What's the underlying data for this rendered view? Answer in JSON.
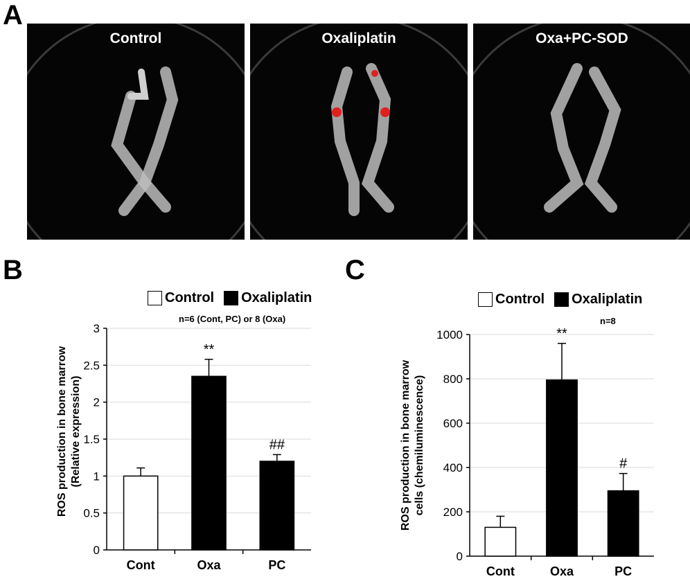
{
  "panel_a": {
    "letter": "A",
    "images": [
      {
        "title": "Control"
      },
      {
        "title": "Oxaliplatin"
      },
      {
        "title": "Oxa+PC-SOD"
      }
    ]
  },
  "panel_b": {
    "letter": "B",
    "legend": {
      "control": "Control",
      "oxaliplatin": "Oxaliplatin"
    },
    "n_note": "n=6 (Cont, PC) or 8 (Oxa)",
    "ylabel_line1": "ROS production in bone marrow",
    "ylabel_line2": "(Relative expression)"
  },
  "panel_c": {
    "letter": "C",
    "legend": {
      "control": "Control",
      "oxaliplatin": "Oxaliplatin"
    },
    "n_note": "n=8",
    "ylabel_line1": "ROS production in bone marrow",
    "ylabel_line2": "cells (chemiluminescence)"
  },
  "chart_data": [
    {
      "type": "bar",
      "categories": [
        "Cont",
        "Oxa",
        "PC"
      ],
      "values": [
        1.0,
        2.35,
        1.2
      ],
      "errors": [
        0.11,
        0.23,
        0.09
      ],
      "annotations": [
        "",
        "**",
        "##"
      ],
      "fills": [
        "#ffffff",
        "#000000",
        "#000000"
      ],
      "ylim": [
        0,
        3
      ],
      "yticks": [
        "0",
        "0.5",
        "1",
        "1.5",
        "2",
        "2.5",
        "3"
      ],
      "ytick_values": [
        0,
        0.5,
        1,
        1.5,
        2,
        2.5,
        3
      ],
      "grid": true
    },
    {
      "type": "bar",
      "categories": [
        "Cont",
        "Oxa",
        "PC"
      ],
      "values": [
        130,
        795,
        295
      ],
      "errors": [
        50,
        165,
        78
      ],
      "annotations": [
        "",
        "**",
        "#"
      ],
      "fills": [
        "#ffffff",
        "#000000",
        "#000000"
      ],
      "ylim": [
        0,
        1000
      ],
      "yticks": [
        "0",
        "200",
        "400",
        "600",
        "800",
        "1000"
      ],
      "ytick_values": [
        0,
        200,
        400,
        600,
        800,
        1000
      ],
      "grid": true
    }
  ]
}
